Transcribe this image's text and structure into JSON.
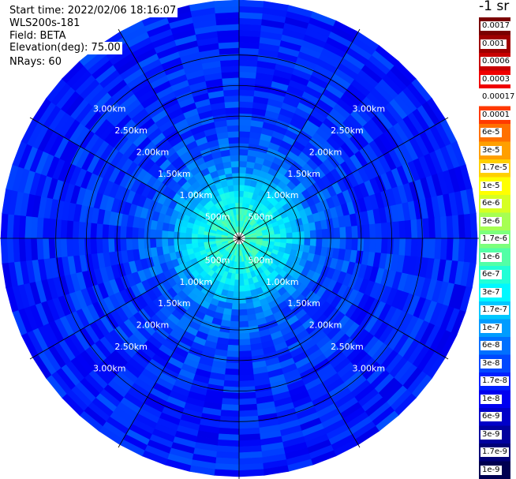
{
  "header": {
    "start_time": "Start time: 2022/02/06 18:16:07",
    "instrument": "WLS200s-181",
    "field": "Field: BETA",
    "elevation": "Elevation(deg): 75.00",
    "nrays": "NRays: 60"
  },
  "colorbar": {
    "title": "-1 sr",
    "labels": [
      "0.0017",
      "0.001",
      "0.0006",
      "0.0003",
      "0.00017",
      "0.0001",
      "6e-5",
      "3e-5",
      "1.7e-5",
      "1e-5",
      "6e-6",
      "3e-6",
      "1.7e-6",
      "1e-6",
      "6e-7",
      "3e-7",
      "1.7e-7",
      "1e-7",
      "6e-8",
      "3e-8",
      "1.7e-8",
      "1e-8",
      "6e-9",
      "3e-9",
      "1.7e-9",
      "1e-9"
    ],
    "colors": [
      "#7a0000",
      "#9e0000",
      "#c80000",
      "#f00000",
      "#ffffff",
      "#ff3a00",
      "#ff7000",
      "#ff9f00",
      "#ffd000",
      "#ffff00",
      "#d6ff22",
      "#a6ff52",
      "#7cff7c",
      "#52ffa6",
      "#22ffd6",
      "#00f8ff",
      "#00c8ff",
      "#009cff",
      "#0070ff",
      "#0048ff",
      "#0020ff",
      "#0000f0",
      "#0000c8",
      "#00009e",
      "#000078",
      "#000050"
    ]
  },
  "chart_data": {
    "type": "heatmap",
    "projection": "polar (PPI scan)",
    "field": "BETA",
    "elevation_deg": 75.0,
    "n_rays": 60,
    "range_rings_km": [
      0.5,
      1.0,
      1.5,
      2.0,
      2.5,
      3.0
    ],
    "ring_labels": [
      "500m",
      "1.00km",
      "1.50km",
      "2.00km",
      "2.50km",
      "3.00km"
    ],
    "radial_lines_deg": [
      0,
      30,
      60,
      90,
      120,
      150,
      180,
      210,
      240,
      270,
      300,
      330
    ],
    "max_range_km": 3.9,
    "colorscale": "log10 backscatter, 1e-9 to 0.0017 sr-1",
    "radial_profile_log10_beta": [
      {
        "range_km": 0.1,
        "value": -6.7
      },
      {
        "range_km": 0.5,
        "value": -6.9
      },
      {
        "range_km": 0.8,
        "value": -7.1
      },
      {
        "range_km": 1.0,
        "value": -7.4
      },
      {
        "range_km": 1.3,
        "value": -7.7
      },
      {
        "range_km": 1.6,
        "value": -7.8
      },
      {
        "range_km": 2.0,
        "value": -7.9
      },
      {
        "range_km": 3.0,
        "value": -8.0
      },
      {
        "range_km": 3.9,
        "value": -8.0
      }
    ]
  }
}
